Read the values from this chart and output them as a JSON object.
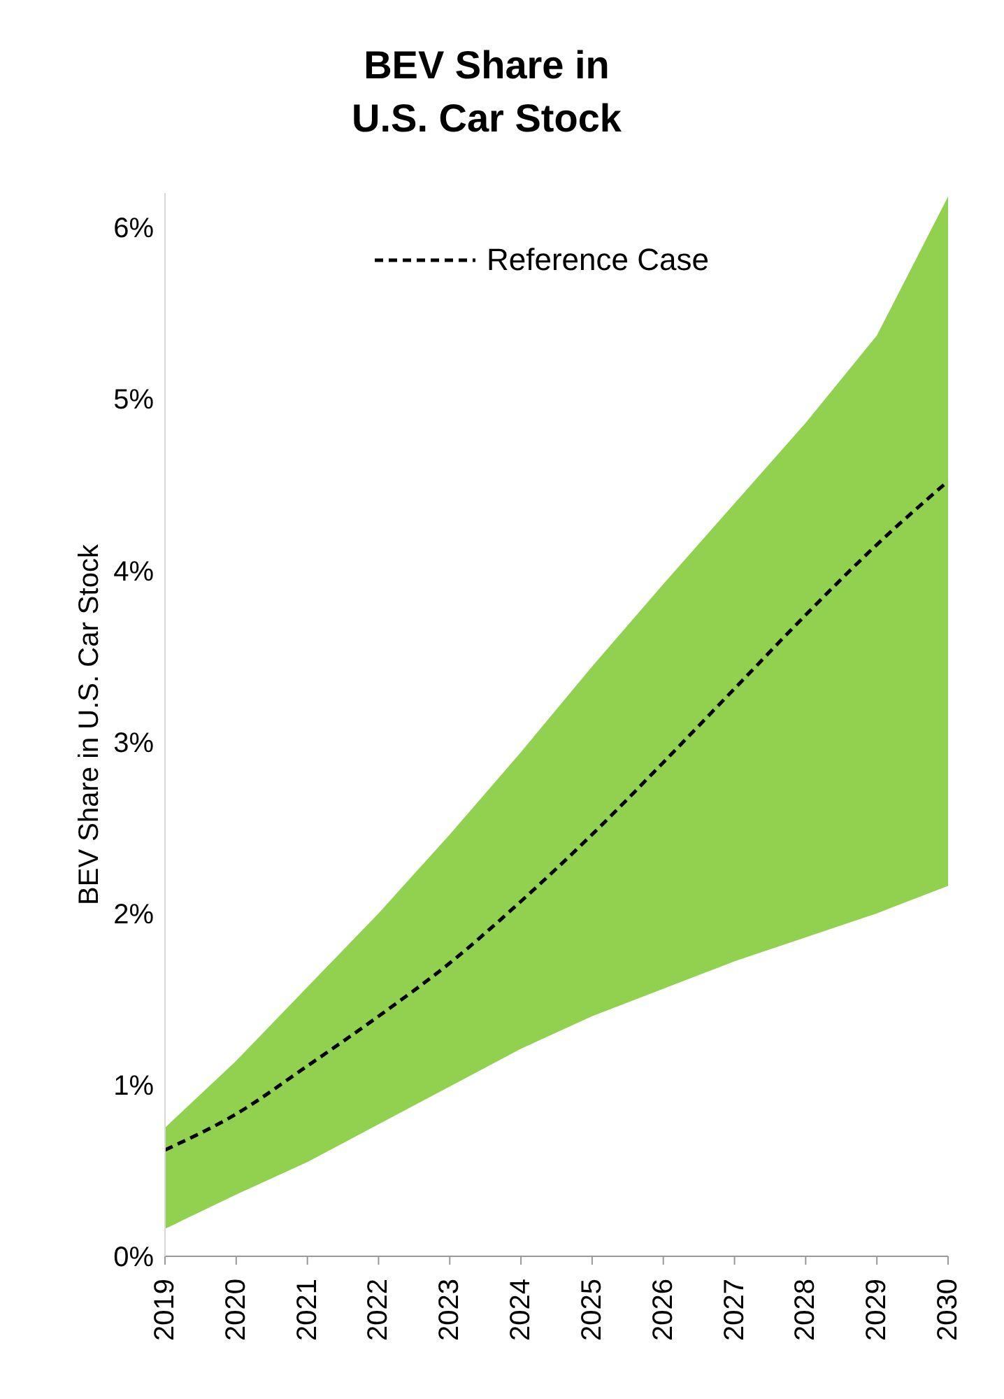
{
  "chart_data": {
    "type": "line",
    "title": "BEV Share in U.S. Car Stock",
    "ylabel": "BEV Share in U.S. Car Stock",
    "categories": [
      "2019",
      "2020",
      "2021",
      "2022",
      "2023",
      "2024",
      "2025",
      "2026",
      "2027",
      "2028",
      "2029",
      "2030"
    ],
    "series": [
      {
        "name": "Reference Case",
        "color": "#000000",
        "line_style": "dashed",
        "values": [
          0.62,
          0.83,
          1.11,
          1.4,
          1.71,
          2.07,
          2.46,
          2.88,
          3.31,
          3.74,
          4.15,
          4.52
        ],
        "lower": [
          0.16,
          0.36,
          0.55,
          0.77,
          0.99,
          1.21,
          1.4,
          1.56,
          1.72,
          1.86,
          2.0,
          2.16
        ],
        "upper": [
          0.75,
          1.14,
          1.57,
          2.0,
          2.46,
          2.94,
          3.44,
          3.92,
          4.39,
          4.86,
          5.37,
          6.18
        ]
      }
    ],
    "ylim": [
      0,
      6.2
    ],
    "yticks": [
      {
        "value": 0,
        "label": "0%"
      },
      {
        "value": 1,
        "label": "1%"
      },
      {
        "value": 2,
        "label": "2%"
      },
      {
        "value": 3,
        "label": "3%"
      },
      {
        "value": 4,
        "label": "4%"
      },
      {
        "value": 5,
        "label": "5%"
      },
      {
        "value": 6,
        "label": "6%"
      }
    ],
    "grid": false,
    "legend": "top",
    "marker": "none"
  }
}
